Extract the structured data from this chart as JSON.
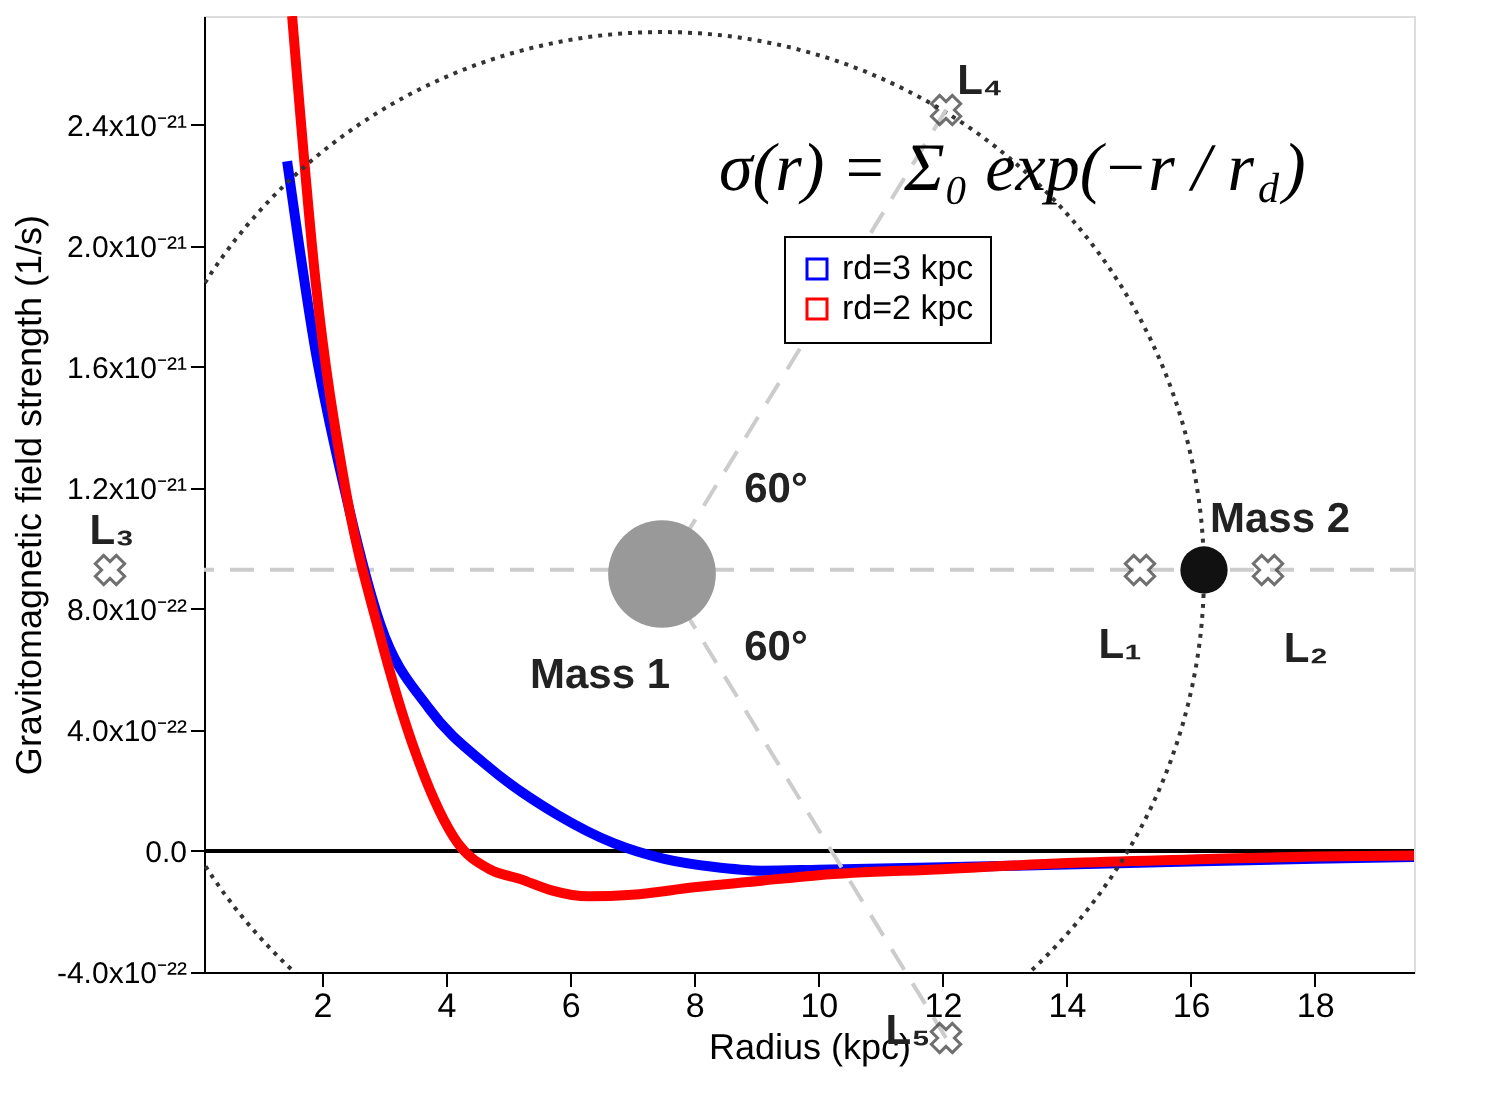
{
  "chart_data": {
    "type": "line",
    "xlabel": "Radius (kpc)",
    "ylabel": "Gravitomagnetic field strength (1/s)",
    "xlim": [
      0.1,
      19.6
    ],
    "ylim": [
      -4e-22,
      2.76e-21
    ],
    "xticks": [
      2,
      4,
      6,
      8,
      10,
      12,
      14,
      16,
      18
    ],
    "yticks": [
      {
        "value": -4e-22,
        "label": "-4.0x10⁻²²"
      },
      {
        "value": 0,
        "label": "0.0"
      },
      {
        "value": 4e-22,
        "label": "4.0x10⁻²²"
      },
      {
        "value": 8e-22,
        "label": "8.0x10⁻²²"
      },
      {
        "value": 1.2e-21,
        "label": "1.2x10⁻²¹"
      },
      {
        "value": 1.6e-21,
        "label": "1.6x10⁻²¹"
      },
      {
        "value": 2e-21,
        "label": "2.0x10⁻²¹"
      },
      {
        "value": 2.4e-21,
        "label": "2.4x10⁻²¹"
      }
    ],
    "series": [
      {
        "name": "rd=3 kpc",
        "color": "#0000ff",
        "x": [
          1.44,
          1.9,
          2.36,
          2.94,
          3.73,
          4.65,
          5.8,
          6.7,
          7.5,
          8.3,
          9.1,
          10,
          12,
          14,
          16,
          18,
          19.6
        ],
        "values": [
          2.28e-21,
          1.65e-21,
          1.2e-21,
          7.5e-22,
          4.7e-22,
          2.84e-22,
          1.19e-22,
          2.6e-23,
          -2.5e-23,
          -5.2e-23,
          -6.5e-23,
          -6.2e-23,
          -5.4e-23,
          -4.5e-23,
          -3.5e-23,
          -2.6e-23,
          -2e-23
        ]
      },
      {
        "name": "rd=2 kpc",
        "color": "#ff0000",
        "x": [
          1.52,
          1.9,
          2.36,
          2.94,
          3.5,
          4.19,
          4.7,
          5.2,
          5.7,
          6.3,
          7,
          8,
          9,
          10,
          12,
          14,
          16,
          18,
          19.6
        ],
        "values": [
          2.76e-21,
          1.88e-21,
          1.22e-21,
          7.1e-22,
          3.3e-22,
          2.6e-23,
          -6e-23,
          -9.3e-23,
          -1.3e-22,
          -1.5e-22,
          -1.45e-22,
          -1.2e-22,
          -1e-22,
          -8e-23,
          -6e-23,
          -4e-23,
          -2.8e-23,
          -1.8e-23,
          -1.5e-23
        ]
      }
    ],
    "ref_lines": [
      {
        "axis": "y",
        "value": 0,
        "color": "#000000",
        "line_style": "solid"
      },
      {
        "axis": "y",
        "value": 9.3e-22,
        "color": "#cccccc",
        "line_style": "dashed"
      }
    ],
    "legend": "top right",
    "grid": false,
    "annotations": [
      "σ(r) = Σ₀ exp(−r / r$_{d}$)",
      "Mass 1",
      "Mass 2",
      "60°",
      "60°",
      "L₁",
      "L₂",
      "L₃",
      "L₄",
      "L₅"
    ]
  }
}
